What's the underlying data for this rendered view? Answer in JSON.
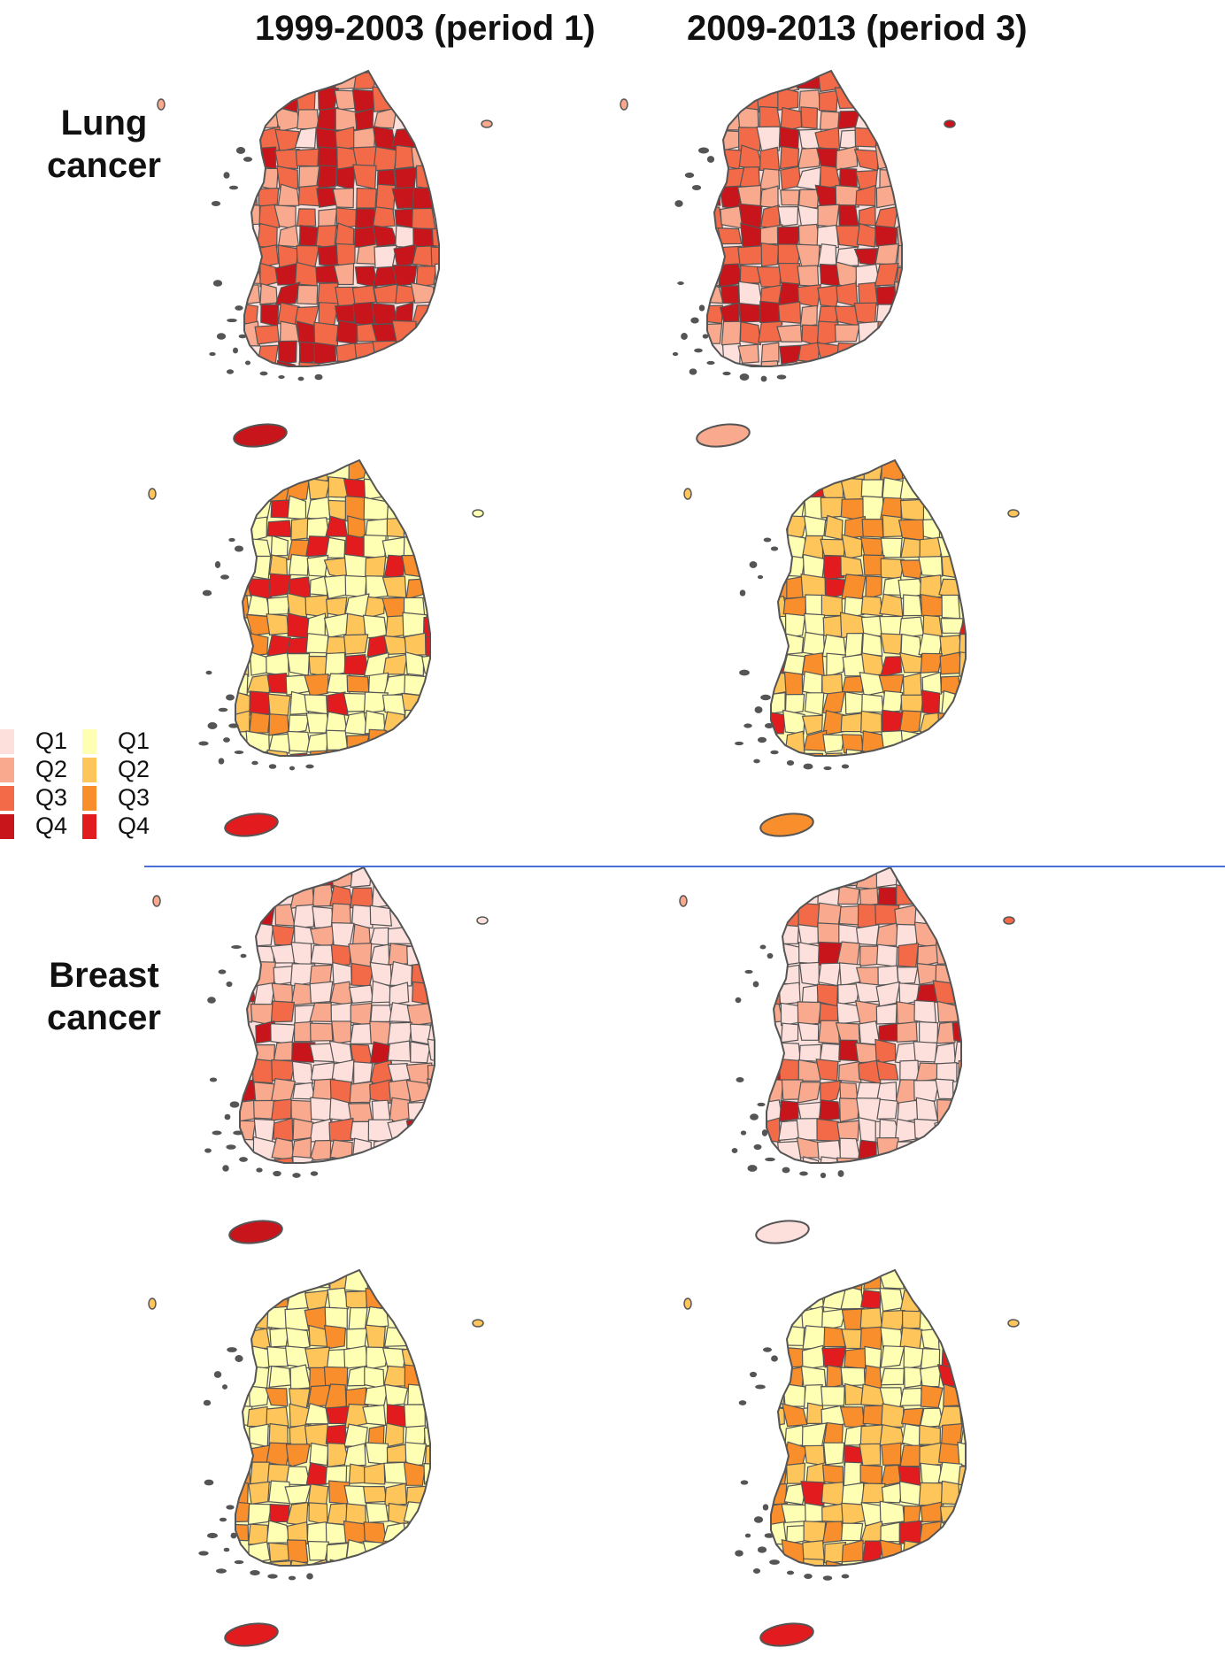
{
  "columns": [
    {
      "title": "1999-2003 (period 1)"
    },
    {
      "title": "2009-2013 (period 3)"
    }
  ],
  "rows": [
    {
      "label_line1": "Lung",
      "label_line2": "cancer"
    },
    {
      "label_line1": "Breast",
      "label_line2": "cancer"
    }
  ],
  "legend": {
    "red_scale": {
      "labels": [
        "Q1",
        "Q2",
        "Q3",
        "Q4"
      ],
      "colors": [
        "#fde0dc",
        "#f9a98d",
        "#f26a47",
        "#c8141b"
      ]
    },
    "yellow_scale": {
      "labels": [
        "Q1",
        "Q2",
        "Q3",
        "Q4"
      ],
      "colors": [
        "#ffffb3",
        "#fec65a",
        "#f98f2c",
        "#e21b1f"
      ]
    }
  },
  "maps": [
    {
      "id": "lung-men-p1",
      "palette": "red_scale",
      "mainland_dist": [
        0.05,
        0.15,
        0.4,
        0.4
      ],
      "jeju": 3,
      "ulleung": 1
    },
    {
      "id": "lung-men-p3",
      "palette": "red_scale",
      "mainland_dist": [
        0.1,
        0.3,
        0.35,
        0.25
      ],
      "jeju": 1,
      "ulleung": 3
    },
    {
      "id": "lung-women-p1",
      "palette": "yellow_scale",
      "mainland_dist": [
        0.4,
        0.3,
        0.2,
        0.1
      ],
      "jeju": 3,
      "ulleung": 0
    },
    {
      "id": "lung-women-p3",
      "palette": "yellow_scale",
      "mainland_dist": [
        0.35,
        0.3,
        0.25,
        0.1
      ],
      "jeju": 2,
      "ulleung": 1
    },
    {
      "id": "breast-p1-red",
      "palette": "red_scale",
      "mainland_dist": [
        0.45,
        0.3,
        0.18,
        0.07
      ],
      "jeju": 3,
      "ulleung": 0
    },
    {
      "id": "breast-p3-red",
      "palette": "red_scale",
      "mainland_dist": [
        0.45,
        0.3,
        0.15,
        0.1
      ],
      "jeju": 0,
      "ulleung": 2
    },
    {
      "id": "breast-p1-yellow",
      "palette": "yellow_scale",
      "mainland_dist": [
        0.4,
        0.35,
        0.18,
        0.07
      ],
      "jeju": 3,
      "ulleung": 1
    },
    {
      "id": "breast-p3-yellow",
      "palette": "yellow_scale",
      "mainland_dist": [
        0.4,
        0.3,
        0.2,
        0.1
      ],
      "jeju": 3,
      "ulleung": 1
    }
  ],
  "colors": {
    "border": "#555555",
    "divider": "#4a6fd6"
  }
}
